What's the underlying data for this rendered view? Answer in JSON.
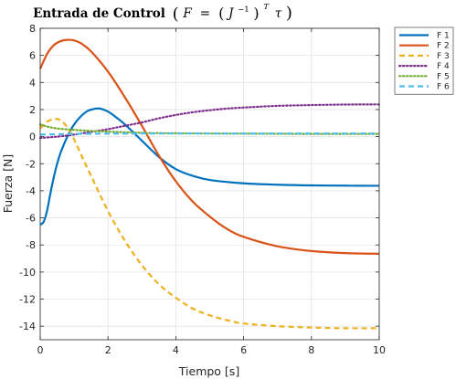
{
  "chart_data": {
    "type": "line",
    "title": "Entrada de Control",
    "title_formula": {
      "open": "(",
      "F": "F",
      "eq": " = ",
      "J": "J",
      "inv": "−1",
      "T": "T",
      "tau": "τ",
      "close": ")"
    },
    "xlabel": "Tiempo [s]",
    "ylabel": "Fuerza [N]",
    "xlim": [
      0,
      10
    ],
    "ylim": [
      -15,
      8
    ],
    "xticks": [
      0,
      2,
      4,
      6,
      8,
      10
    ],
    "yticks": [
      8,
      6,
      4,
      2,
      0,
      -2,
      -4,
      -6,
      -8,
      -10,
      -12,
      -14
    ],
    "grid": true,
    "legend_position": "outside-right-top",
    "series": [
      {
        "name": "F 1",
        "color": "#0072BD",
        "dash": "solid",
        "x": [
          0,
          0.1,
          0.2,
          0.3,
          0.4,
          0.5,
          0.6,
          0.8,
          1.0,
          1.2,
          1.4,
          1.6,
          1.7,
          1.8,
          2.0,
          2.2,
          2.5,
          3.0,
          3.5,
          4.0,
          4.5,
          5.0,
          6.0,
          7.0,
          8.0,
          9.0,
          10.0
        ],
        "y": [
          -6.5,
          -6.3,
          -5.5,
          -4.2,
          -3.0,
          -2.0,
          -1.2,
          0.0,
          0.9,
          1.5,
          1.9,
          2.05,
          2.08,
          2.05,
          1.85,
          1.5,
          0.9,
          -0.3,
          -1.5,
          -2.4,
          -2.9,
          -3.2,
          -3.45,
          -3.55,
          -3.6,
          -3.62,
          -3.63
        ]
      },
      {
        "name": "F 2",
        "color": "#D95319",
        "dash": "solid",
        "x": [
          0,
          0.2,
          0.4,
          0.6,
          0.8,
          1.0,
          1.2,
          1.5,
          2.0,
          2.5,
          3.0,
          3.5,
          4.0,
          4.5,
          5.0,
          5.5,
          6.0,
          7.0,
          8.0,
          9.0,
          10.0
        ],
        "y": [
          5.0,
          6.1,
          6.75,
          7.05,
          7.15,
          7.1,
          6.9,
          6.3,
          4.8,
          2.9,
          0.8,
          -1.4,
          -3.3,
          -4.8,
          -5.9,
          -6.8,
          -7.4,
          -8.1,
          -8.45,
          -8.6,
          -8.65
        ]
      },
      {
        "name": "F 3",
        "color": "#EDB120",
        "dash": "dashed",
        "x": [
          0,
          0.2,
          0.4,
          0.5,
          0.6,
          0.8,
          1.0,
          1.2,
          1.5,
          2.0,
          2.5,
          3.0,
          3.5,
          4.0,
          4.5,
          5.0,
          5.5,
          6.0,
          7.0,
          8.0,
          9.0,
          10.0
        ],
        "y": [
          0.6,
          1.1,
          1.3,
          1.3,
          1.2,
          0.7,
          -0.2,
          -1.3,
          -2.9,
          -5.5,
          -7.7,
          -9.5,
          -10.9,
          -11.9,
          -12.7,
          -13.2,
          -13.55,
          -13.8,
          -14.0,
          -14.1,
          -14.15,
          -14.15
        ]
      },
      {
        "name": "F 4",
        "color": "#7E2F8E",
        "dash": "dotted",
        "x": [
          0,
          0.5,
          1.0,
          1.5,
          2.0,
          2.5,
          3.0,
          3.5,
          4.0,
          4.5,
          5.0,
          5.5,
          6.0,
          7.0,
          8.0,
          9.0,
          10.0
        ],
        "y": [
          -0.1,
          0.0,
          0.15,
          0.35,
          0.55,
          0.8,
          1.05,
          1.35,
          1.6,
          1.8,
          1.95,
          2.07,
          2.15,
          2.27,
          2.33,
          2.37,
          2.38
        ]
      },
      {
        "name": "F 5",
        "color": "#77AC30",
        "dash": "dotted",
        "x": [
          0,
          0.2,
          0.5,
          1.0,
          1.5,
          2.0,
          2.5,
          3.0,
          3.5,
          4.0,
          5.0,
          6.0,
          7.0,
          8.0,
          9.0,
          10.0
        ],
        "y": [
          0.9,
          0.75,
          0.6,
          0.5,
          0.42,
          0.37,
          0.32,
          0.28,
          0.26,
          0.25,
          0.23,
          0.22,
          0.21,
          0.2,
          0.2,
          0.2
        ]
      },
      {
        "name": "F 6",
        "color": "#4DBEEE",
        "dash": "dashed",
        "x": [
          0,
          0.5,
          1.0,
          2.0,
          3.0,
          4.0,
          5.0,
          6.0,
          7.0,
          8.0,
          9.0,
          10.0
        ],
        "y": [
          0.15,
          0.18,
          0.2,
          0.22,
          0.23,
          0.23,
          0.23,
          0.23,
          0.23,
          0.23,
          0.23,
          0.23
        ]
      }
    ]
  }
}
